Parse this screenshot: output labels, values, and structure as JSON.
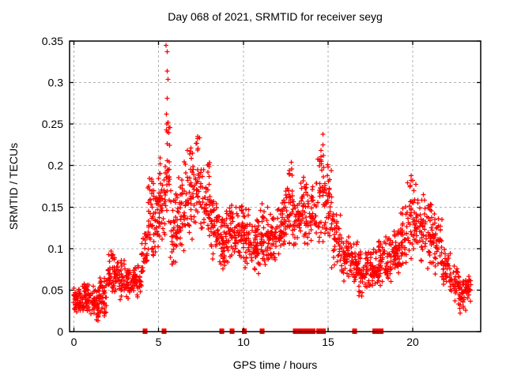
{
  "chart_data": {
    "type": "scatter",
    "title": "Day 068 of 2021, SRMTID for receiver seyg",
    "xlabel": "GPS time / hours",
    "ylabel": "SRMTID / TECUs",
    "xlim": [
      -0.25,
      24.0
    ],
    "ylim": [
      0,
      0.35
    ],
    "x_ticks": [
      {
        "v": 0,
        "label": "0"
      },
      {
        "v": 5,
        "label": "5"
      },
      {
        "v": 10,
        "label": "10"
      },
      {
        "v": 15,
        "label": "15"
      },
      {
        "v": 20,
        "label": "20"
      }
    ],
    "y_ticks": [
      {
        "v": 0,
        "label": "0"
      },
      {
        "v": 0.05,
        "label": "0.05"
      },
      {
        "v": 0.1,
        "label": "0.1"
      },
      {
        "v": 0.15,
        "label": "0.15"
      },
      {
        "v": 0.2,
        "label": "0.2"
      },
      {
        "v": 0.25,
        "label": "0.25"
      },
      {
        "v": 0.3,
        "label": "0.3"
      },
      {
        "v": 0.35,
        "label": "0.35"
      }
    ],
    "grid": true,
    "grid_style": "dashed",
    "legend": "none",
    "marker": {
      "shape": "plus",
      "size": 7,
      "color": "#ff0000"
    },
    "colors": {
      "marker": "#ff0000",
      "grid": "#b0b0b0",
      "border": "#000000",
      "background": "#ffffff"
    },
    "seed": 20681,
    "envelope_bands": [
      [
        0.0,
        0.5,
        0.02,
        0.055,
        55
      ],
      [
        0.5,
        1.0,
        0.018,
        0.06,
        55
      ],
      [
        1.0,
        1.5,
        0.01,
        0.055,
        50
      ],
      [
        1.5,
        2.0,
        0.015,
        0.065,
        50
      ],
      [
        2.0,
        2.5,
        0.04,
        0.095,
        45
      ],
      [
        2.5,
        3.0,
        0.035,
        0.09,
        42
      ],
      [
        3.0,
        3.5,
        0.035,
        0.075,
        42
      ],
      [
        3.5,
        4.0,
        0.04,
        0.08,
        42
      ],
      [
        4.0,
        4.35,
        0.05,
        0.12,
        28
      ],
      [
        4.35,
        4.7,
        0.08,
        0.19,
        38
      ],
      [
        4.7,
        5.1,
        0.09,
        0.185,
        38
      ],
      [
        5.1,
        5.4,
        0.1,
        0.21,
        32
      ],
      [
        5.4,
        5.7,
        0.11,
        0.26,
        28
      ],
      [
        5.7,
        6.1,
        0.07,
        0.175,
        38
      ],
      [
        6.1,
        6.5,
        0.09,
        0.19,
        38
      ],
      [
        6.5,
        7.0,
        0.1,
        0.225,
        42
      ],
      [
        7.0,
        7.5,
        0.11,
        0.235,
        42
      ],
      [
        7.5,
        8.0,
        0.1,
        0.205,
        46
      ],
      [
        8.0,
        8.5,
        0.08,
        0.16,
        46
      ],
      [
        8.5,
        9.0,
        0.07,
        0.145,
        46
      ],
      [
        9.0,
        9.5,
        0.08,
        0.15,
        46
      ],
      [
        9.5,
        10.0,
        0.08,
        0.155,
        46
      ],
      [
        10.0,
        10.5,
        0.07,
        0.15,
        46
      ],
      [
        10.5,
        11.0,
        0.06,
        0.135,
        46
      ],
      [
        11.0,
        11.5,
        0.07,
        0.155,
        46
      ],
      [
        11.5,
        12.0,
        0.08,
        0.145,
        46
      ],
      [
        12.0,
        12.5,
        0.09,
        0.16,
        46
      ],
      [
        12.5,
        12.9,
        0.1,
        0.205,
        36
      ],
      [
        12.9,
        13.4,
        0.09,
        0.17,
        40
      ],
      [
        13.4,
        13.8,
        0.1,
        0.185,
        36
      ],
      [
        13.8,
        14.3,
        0.1,
        0.175,
        40
      ],
      [
        14.3,
        14.8,
        0.1,
        0.235,
        40
      ],
      [
        14.8,
        15.2,
        0.1,
        0.21,
        36
      ],
      [
        15.2,
        15.7,
        0.07,
        0.15,
        40
      ],
      [
        15.7,
        16.2,
        0.06,
        0.12,
        40
      ],
      [
        16.2,
        16.7,
        0.05,
        0.115,
        40
      ],
      [
        16.7,
        17.2,
        0.04,
        0.1,
        44
      ],
      [
        17.2,
        17.7,
        0.045,
        0.105,
        44
      ],
      [
        17.7,
        18.2,
        0.05,
        0.11,
        44
      ],
      [
        18.2,
        18.7,
        0.055,
        0.115,
        44
      ],
      [
        18.7,
        19.2,
        0.06,
        0.13,
        44
      ],
      [
        19.2,
        19.7,
        0.07,
        0.155,
        40
      ],
      [
        19.7,
        20.2,
        0.08,
        0.185,
        40
      ],
      [
        20.2,
        20.7,
        0.08,
        0.175,
        40
      ],
      [
        20.7,
        21.2,
        0.07,
        0.16,
        40
      ],
      [
        21.2,
        21.7,
        0.06,
        0.145,
        40
      ],
      [
        21.7,
        22.2,
        0.05,
        0.105,
        40
      ],
      [
        22.2,
        22.7,
        0.035,
        0.08,
        40
      ],
      [
        22.7,
        23.2,
        0.02,
        0.065,
        40
      ],
      [
        23.2,
        23.45,
        0.03,
        0.07,
        20
      ]
    ],
    "outlier_points": [
      [
        5.45,
        0.345
      ],
      [
        5.52,
        0.337
      ],
      [
        5.5,
        0.314
      ],
      [
        5.56,
        0.304
      ],
      [
        5.5,
        0.281
      ],
      [
        5.46,
        0.262
      ],
      [
        5.55,
        0.252
      ],
      [
        5.6,
        0.246
      ],
      [
        7.3,
        0.235
      ],
      [
        7.25,
        0.227
      ],
      [
        6.9,
        0.221
      ],
      [
        6.85,
        0.214
      ],
      [
        12.82,
        0.204
      ],
      [
        12.85,
        0.196
      ],
      [
        14.7,
        0.238
      ],
      [
        14.7,
        0.225
      ],
      [
        14.72,
        0.212
      ],
      [
        14.75,
        0.198
      ],
      [
        14.6,
        0.205
      ],
      [
        19.9,
        0.188
      ],
      [
        20.0,
        0.182
      ],
      [
        19.85,
        0.176
      ],
      [
        20.05,
        0.17
      ],
      [
        2.2,
        0.097
      ],
      [
        9.3,
        0.152
      ],
      [
        13.55,
        0.186
      ]
    ],
    "zero_marks_hours": [
      4.2,
      5.33,
      8.72,
      9.33,
      10.05,
      11.1,
      13.06,
      13.16,
      13.26,
      13.36,
      13.46,
      13.56,
      13.66,
      13.76,
      14.0,
      14.12,
      14.45,
      14.58,
      14.72,
      16.56,
      17.75,
      17.85,
      18.12
    ]
  }
}
